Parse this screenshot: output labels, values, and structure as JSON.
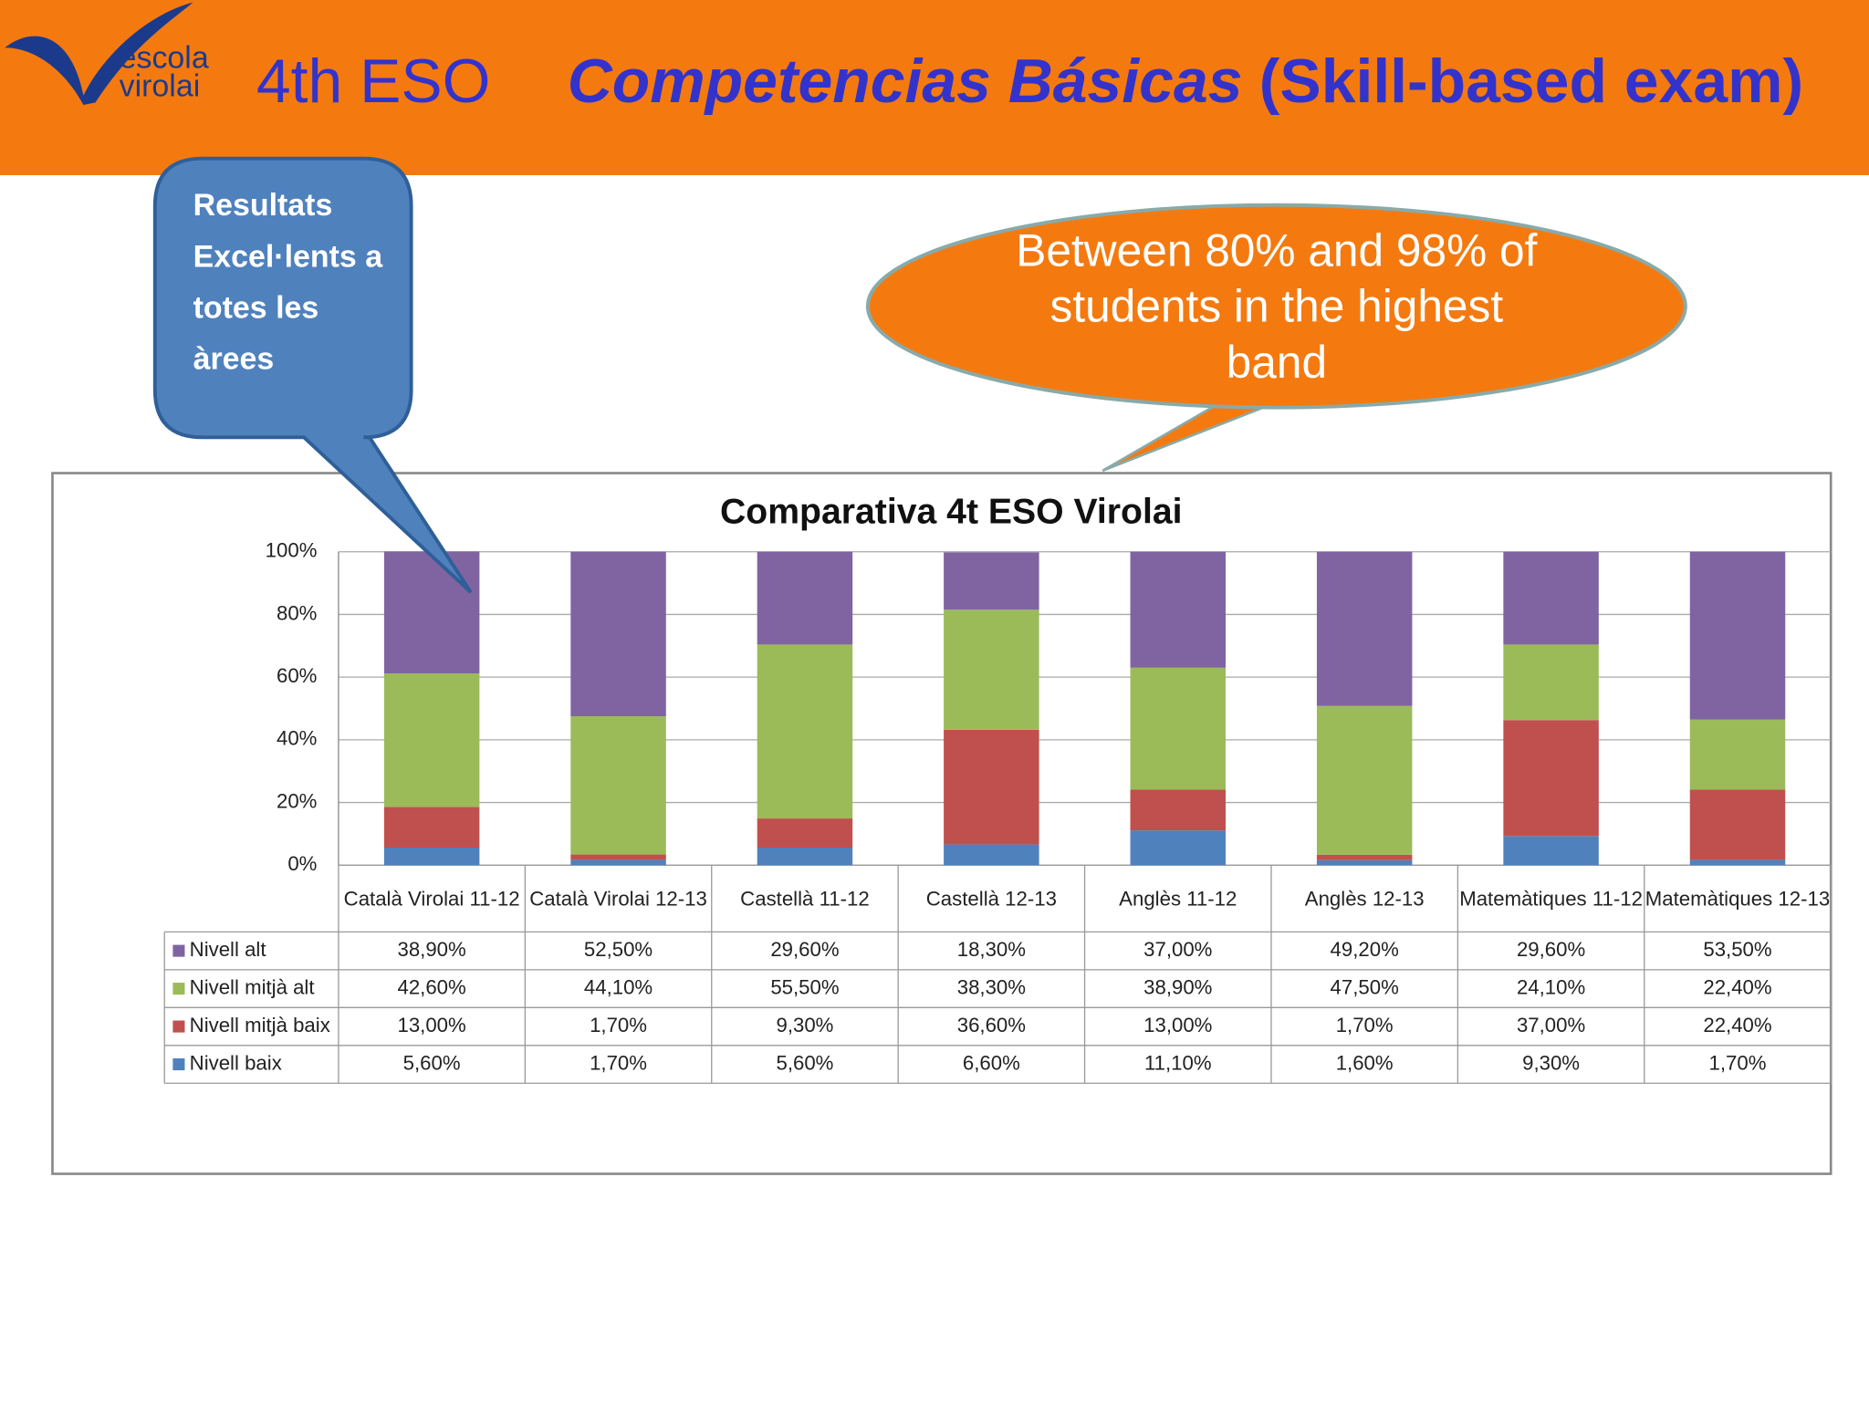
{
  "header": {
    "logo_top": "escola",
    "logo_bottom": "virolai",
    "grade": "4th ESO",
    "title_italic": "Competencias Básicas",
    "title_rest": "(Skill-based exam)"
  },
  "callout_left": {
    "lines": [
      "Resultats",
      "Excel·lents a",
      "totes les",
      "àrees"
    ]
  },
  "callout_right": {
    "lines": [
      "Between 80% and 98% of",
      "students in the highest",
      "band"
    ]
  },
  "chart_data": {
    "type": "bar",
    "stacked": true,
    "title": "Comparativa 4t ESO Virolai",
    "categories": [
      "Català Virolai 11-12",
      "Català Virolai 12-13",
      "Castellà 11-12",
      "Castellà 12-13",
      "Anglès 11-12",
      "Anglès 12-13",
      "Matemàtiques 11-12",
      "Matemàtiques 12-13"
    ],
    "series": [
      {
        "name": "Nivell alt",
        "color": "#8064a2",
        "values": [
          38.9,
          52.5,
          29.6,
          18.3,
          37.0,
          49.2,
          29.6,
          53.5
        ],
        "value_labels": [
          "38,90%",
          "52,50%",
          "29,60%",
          "18,30%",
          "37,00%",
          "49,20%",
          "29,60%",
          "53,50%"
        ]
      },
      {
        "name": "Nivell mitjà alt",
        "color": "#9bbb59",
        "values": [
          42.6,
          44.1,
          55.5,
          38.3,
          38.9,
          47.5,
          24.1,
          22.4
        ],
        "value_labels": [
          "42,60%",
          "44,10%",
          "55,50%",
          "38,30%",
          "38,90%",
          "47,50%",
          "24,10%",
          "22,40%"
        ]
      },
      {
        "name": "Nivell mitjà baix",
        "color": "#c0504d",
        "values": [
          13.0,
          1.7,
          9.3,
          36.6,
          13.0,
          1.7,
          37.0,
          22.4
        ],
        "value_labels": [
          "13,00%",
          "1,70%",
          "9,30%",
          "36,60%",
          "13,00%",
          "1,70%",
          "37,00%",
          "22,40%"
        ]
      },
      {
        "name": "Nivell baix",
        "color": "#4f81bd",
        "values": [
          5.6,
          1.7,
          5.6,
          6.6,
          11.1,
          1.6,
          9.3,
          1.7
        ],
        "value_labels": [
          "5,60%",
          "1,70%",
          "5,60%",
          "6,60%",
          "11,10%",
          "1,60%",
          "9,30%",
          "1,70%"
        ]
      }
    ],
    "ylim": [
      0,
      100
    ],
    "yticks": [
      {
        "value": 0,
        "label": "0%"
      },
      {
        "value": 20,
        "label": "20%"
      },
      {
        "value": 40,
        "label": "40%"
      },
      {
        "value": 60,
        "label": "60%"
      },
      {
        "value": 80,
        "label": "80%"
      },
      {
        "value": 100,
        "label": "100%"
      }
    ],
    "grid": true
  }
}
